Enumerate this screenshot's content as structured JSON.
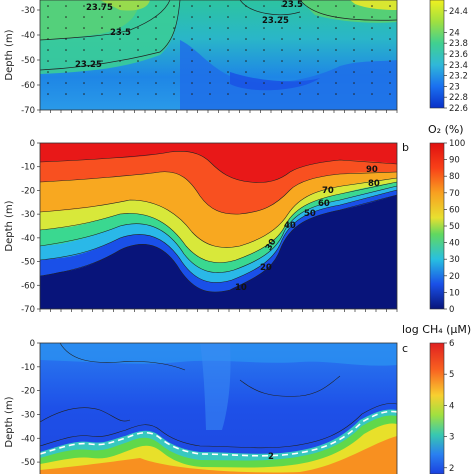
{
  "chart_data": [
    {
      "panel": "a",
      "type": "heatmap",
      "ylabel": "Depth (m)",
      "yticks": [
        -30,
        -40,
        -50,
        -60,
        -70
      ],
      "ylim": [
        -70,
        -26
      ],
      "colorbar_ticks": [
        "24.4",
        "24",
        "23.8",
        "23.6",
        "23.4",
        "23.2",
        "23",
        "22.8",
        "22.6"
      ],
      "colorbar_range": [
        22.6,
        24.6
      ],
      "contour_labels": [
        "23.75",
        "23.5",
        "23.25",
        "23.5",
        "23.25"
      ],
      "colors": [
        "#0050e0",
        "#2aa8e8",
        "#38c9b0",
        "#7fd64a",
        "#e8e82a"
      ]
    },
    {
      "panel": "b",
      "type": "heatmap",
      "letter": "b",
      "title": "O₂ (%)",
      "ylabel": "Depth (m)",
      "yticks": [
        0,
        -10,
        -20,
        -30,
        -40,
        -50,
        -60,
        -70
      ],
      "ylim": [
        -70,
        0
      ],
      "colorbar_ticks": [
        "100",
        "90",
        "80",
        "70",
        "60",
        "50",
        "40",
        "30",
        "20",
        "10",
        "0"
      ],
      "colorbar_range": [
        0,
        100
      ],
      "contour_labels": [
        "90",
        "80",
        "70",
        "60",
        "50",
        "40",
        "30",
        "20",
        "10"
      ],
      "colors": [
        "#0a1a80",
        "#1a5af0",
        "#2ab8e8",
        "#3ad890",
        "#d8e83a",
        "#f8a820",
        "#f85020",
        "#e81818"
      ]
    },
    {
      "panel": "c",
      "type": "heatmap",
      "letter": "c",
      "title": "log CH₄ (μM)",
      "ylabel": "Depth (m)",
      "yticks": [
        0,
        -10,
        -20,
        -30,
        -40,
        -50
      ],
      "ylim": [
        -55,
        0
      ],
      "colorbar_ticks": [
        "6",
        "5",
        "4",
        "3",
        "2"
      ],
      "colorbar_range": [
        1.8,
        6
      ],
      "contour_labels": [
        "2"
      ],
      "colors": [
        "#1a40e0",
        "#2a80f0",
        "#38c8c0",
        "#60d84a",
        "#e8e02a",
        "#f89020",
        "#e83020"
      ]
    }
  ]
}
